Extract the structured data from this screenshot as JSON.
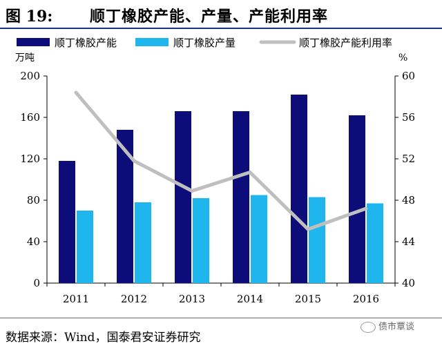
{
  "header": {
    "fig_label": "图 19:",
    "title": "顺丁橡胶产能、产量、产能利用率"
  },
  "source": "数据来源：Wind，国泰君安证券研究",
  "watermark": "债市覃谈",
  "colors": {
    "capacity": "#0d0d7a",
    "output": "#1fb6ee",
    "utilization": "#bfbfbf",
    "rule": "#1a2f8a"
  },
  "chart_data": {
    "type": "bar",
    "categories": [
      "2011",
      "2012",
      "2013",
      "2014",
      "2015",
      "2016"
    ],
    "series": [
      {
        "name": "顺丁橡胶产能",
        "type": "bar",
        "axis": "left",
        "values": [
          118,
          148,
          166,
          166,
          182,
          162
        ]
      },
      {
        "name": "顺丁橡胶产量",
        "type": "bar",
        "axis": "left",
        "values": [
          70,
          78,
          82,
          85,
          83,
          77
        ]
      },
      {
        "name": "顺丁橡胶产能利用率",
        "type": "line",
        "axis": "right",
        "values": [
          58.4,
          51.8,
          48.9,
          50.7,
          45.2,
          47.2
        ]
      }
    ],
    "y_left": {
      "unit": "万吨",
      "ylim": [
        0,
        200
      ],
      "ticks": [
        0,
        40,
        80,
        120,
        160,
        200
      ]
    },
    "y_right": {
      "unit": "%",
      "ylim": [
        40,
        60
      ],
      "ticks": [
        40,
        44,
        48,
        52,
        56,
        60
      ]
    },
    "legend": "top",
    "grid": false
  }
}
